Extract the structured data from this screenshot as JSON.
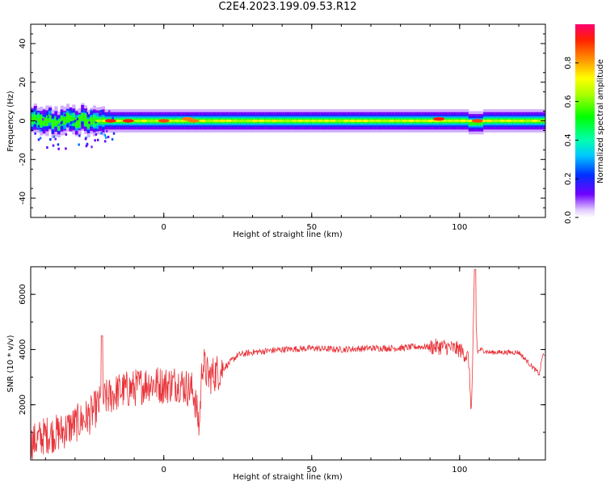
{
  "page": {
    "title": "C2E4.2023.199.09.53.R12"
  },
  "colors": {
    "signal": "#e8343a",
    "axis": "#000000",
    "background": "#ffffff"
  },
  "chart_data": [
    {
      "type": "heatmap",
      "xlabel": "Height of straight line (km)",
      "ylabel": "Frequency (Hz)",
      "xlim": [
        -45,
        129
      ],
      "ylim": [
        -50,
        50
      ],
      "xticks": [
        0,
        50,
        100
      ],
      "yticks": [
        -40,
        -20,
        0,
        20,
        40
      ],
      "colormap": "rainbow (violet → red)",
      "colorbar": {
        "label": "Normalized spectral amplitude",
        "range": [
          0,
          1
        ],
        "ticks": [
          0.0,
          0.2,
          0.4,
          0.6,
          0.8
        ]
      },
      "band": {
        "center_hz": 0,
        "description": "narrow band centred near 0 Hz along full height range"
      },
      "peaks": [
        {
          "x": -18,
          "y": 0,
          "amplitude": 1.0
        },
        {
          "x": -12,
          "y": 0,
          "amplitude": 1.0
        },
        {
          "x": 0,
          "y": 0,
          "amplitude": 0.95
        },
        {
          "x": 8,
          "y": 1,
          "amplitude": 0.9
        },
        {
          "x": 10,
          "y": 0,
          "amplitude": 0.9
        },
        {
          "x": 93,
          "y": 1,
          "amplitude": 1.0
        },
        {
          "x": 106,
          "y": 0,
          "amplitude": 0.95
        }
      ]
    },
    {
      "type": "line",
      "xlabel": "Height of straight line (km)",
      "ylabel": "SNR (10 * v/v)",
      "xlim": [
        -45,
        129
      ],
      "ylim": [
        0,
        7000
      ],
      "xticks": [
        0,
        50,
        100
      ],
      "yticks": [
        2000,
        4000,
        6000
      ],
      "series": [
        {
          "color": "#e8343a",
          "x": [
            -45,
            -40,
            -35,
            -30,
            -25,
            -22,
            -20,
            -15,
            -10,
            -5,
            0,
            5,
            10,
            12,
            13,
            15,
            20,
            25,
            30,
            40,
            50,
            60,
            70,
            80,
            85,
            90,
            95,
            100,
            103,
            104,
            105,
            106,
            107,
            110,
            120,
            127,
            128,
            129
          ],
          "y": [
            600,
            900,
            1000,
            1300,
            1600,
            2000,
            2200,
            2500,
            2600,
            2800,
            2700,
            2800,
            2500,
            1200,
            3600,
            3000,
            3300,
            3800,
            3900,
            4000,
            4050,
            4000,
            4050,
            4050,
            4100,
            4100,
            4100,
            4000,
            3700,
            1700,
            6400,
            3900,
            4000,
            3900,
            3900,
            3100,
            3800,
            3750
          ]
        }
      ]
    }
  ]
}
